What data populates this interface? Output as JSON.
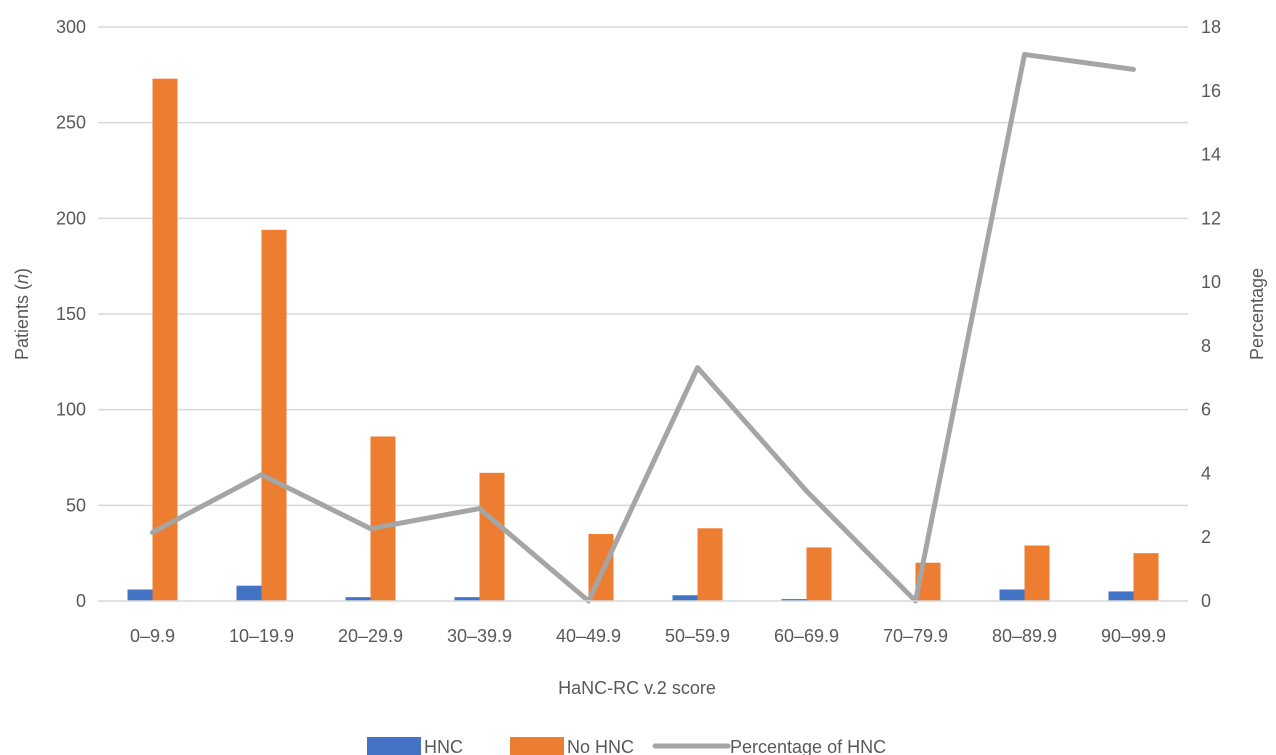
{
  "chart_data": {
    "type": "bar",
    "title": "",
    "xlabel": "HaNC-RC v.2 score",
    "ylabel_main": "Patients",
    "ylabel_italic": "n",
    "y2label": "Percentage",
    "ylim": [
      0,
      300
    ],
    "y2lim": [
      0,
      18
    ],
    "yticks": [
      "0",
      "50",
      "100",
      "150",
      "200",
      "250",
      "300"
    ],
    "y2ticks": [
      "0",
      "2",
      "4",
      "6",
      "8",
      "10",
      "12",
      "14",
      "16",
      "18"
    ],
    "grid": true,
    "legend_position": "bottom",
    "categories": [
      "0–9.9",
      "10–19.9",
      "20–29.9",
      "30–39.9",
      "40–49.9",
      "50–59.9",
      "60–69.9",
      "70–79.9",
      "80–89.9",
      "90–99.9"
    ],
    "series": [
      {
        "name": "HNC",
        "type": "bar",
        "axis": "left",
        "color": "#4472C4",
        "values": [
          6,
          8,
          2,
          2,
          0,
          3,
          1,
          0,
          6,
          5
        ]
      },
      {
        "name": "No HNC",
        "type": "bar",
        "axis": "left",
        "color": "#ED7D31",
        "values": [
          273,
          194,
          86,
          67,
          35,
          38,
          28,
          20,
          29,
          25
        ]
      },
      {
        "name": "Percentage of HNC",
        "type": "line",
        "axis": "right",
        "color": "#A5A5A5",
        "values": [
          2.15,
          3.96,
          2.27,
          2.9,
          0,
          7.32,
          3.45,
          0,
          17.14,
          16.67
        ]
      }
    ]
  }
}
